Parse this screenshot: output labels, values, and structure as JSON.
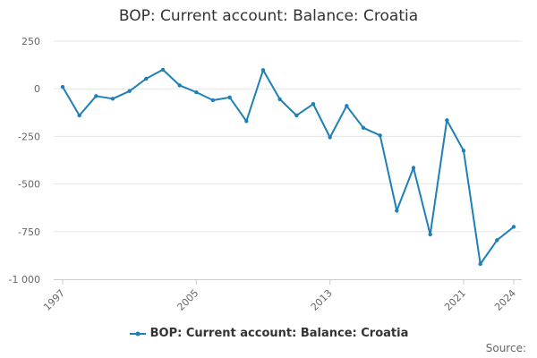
{
  "chart_data": {
    "type": "line",
    "title": "BOP: Current account: Balance: Croatia",
    "xlabel": "",
    "ylabel": "",
    "ylim": [
      -1000,
      250
    ],
    "yticks": [
      250,
      0,
      -250,
      -500,
      -750,
      -1000
    ],
    "ytick_labels": [
      "250",
      "0",
      "-250",
      "-500",
      "-750",
      "-1 000"
    ],
    "xlim": [
      1997,
      2024
    ],
    "xticks": [
      1997,
      2005,
      2013,
      2021,
      2024
    ],
    "xtick_labels": [
      "1997",
      "2005",
      "2013",
      "2021",
      "2024"
    ],
    "grid": "horizontal",
    "legend_position": "bottom",
    "color": "#1f7fb7",
    "series": [
      {
        "name": "BOP: Current account: Balance: Croatia",
        "x": [
          1997,
          1998,
          1999,
          2000,
          2001,
          2002,
          2003,
          2004,
          2005,
          2006,
          2007,
          2008,
          2009,
          2010,
          2011,
          2012,
          2013,
          2014,
          2015,
          2016,
          2017,
          2018,
          2019,
          2020,
          2021,
          2022,
          2023,
          2024
        ],
        "values": [
          10,
          -140,
          -38,
          -52,
          -12,
          53,
          100,
          18,
          -18,
          -60,
          -45,
          -170,
          98,
          -55,
          -140,
          -80,
          -255,
          -90,
          -205,
          -245,
          -640,
          -415,
          -765,
          -165,
          -325,
          -920,
          -795,
          -725
        ]
      }
    ]
  },
  "source_label": "Source:"
}
